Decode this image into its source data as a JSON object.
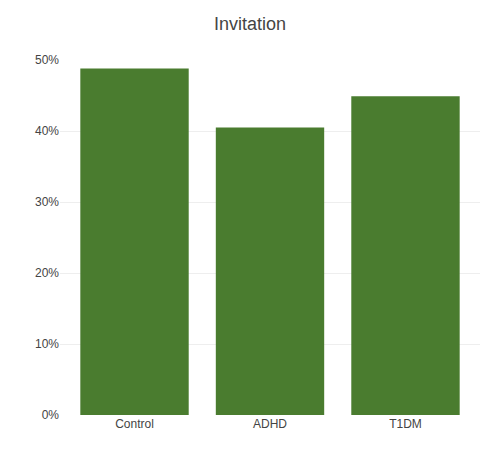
{
  "chart_data": {
    "type": "bar",
    "title": "Invitation",
    "categories": [
      "Control",
      "ADHD",
      "T1DM"
    ],
    "values": [
      0.488,
      0.405,
      0.449
    ],
    "color": "#4a7c2f",
    "ylim": [
      0,
      0.5
    ],
    "yticks": [
      {
        "value": 0.0,
        "label": "0%"
      },
      {
        "value": 0.1,
        "label": "10%"
      },
      {
        "value": 0.2,
        "label": "20%"
      },
      {
        "value": 0.3,
        "label": "30%"
      },
      {
        "value": 0.4,
        "label": "40%"
      },
      {
        "value": 0.5,
        "label": "50%"
      }
    ],
    "grid": true
  }
}
